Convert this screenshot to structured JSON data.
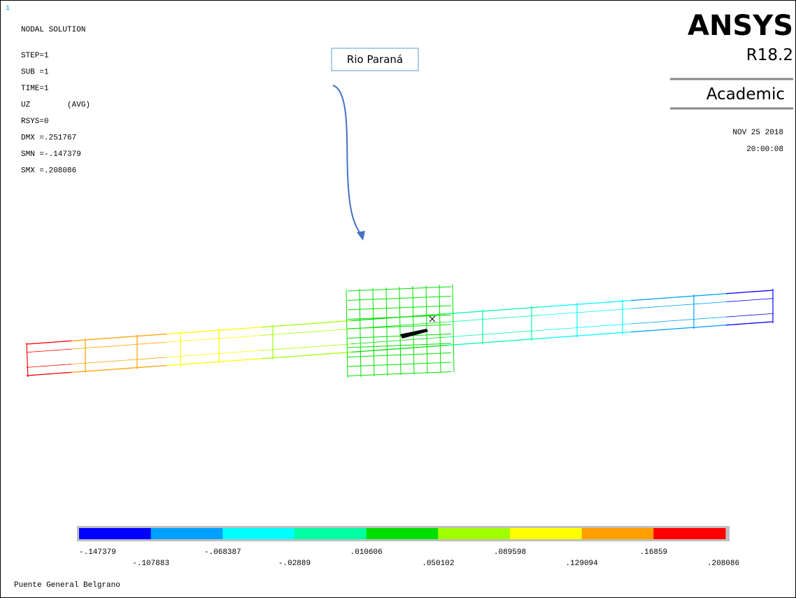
{
  "window_number": "1",
  "info": {
    "title": "NODAL SOLUTION",
    "lines": [
      "STEP=1",
      "SUB =1",
      "TIME=1",
      "UZ        (AVG)",
      "RSYS=0",
      "DMX =.251767",
      "SMN =-.147379",
      "SMX =.208086"
    ]
  },
  "brand": {
    "name": "ANSYS",
    "version": "R18.2",
    "edition": "Academic",
    "date": "NOV 25 2018",
    "time": "20:00:08"
  },
  "annotation": {
    "label": "Rio Paraná"
  },
  "legend": {
    "colors": [
      "#0000ff",
      "#00a0ff",
      "#00ffff",
      "#00ffa0",
      "#00e000",
      "#a0ff00",
      "#ffff00",
      "#ffa000",
      "#ff0000"
    ],
    "labels": [
      "-.147379",
      "-.107883",
      "-.068387",
      "-.02889",
      ".010606",
      ".050102",
      ".089598",
      ".129094",
      ".16859",
      ".208086"
    ]
  },
  "footer": "Puente General Belgrano"
}
